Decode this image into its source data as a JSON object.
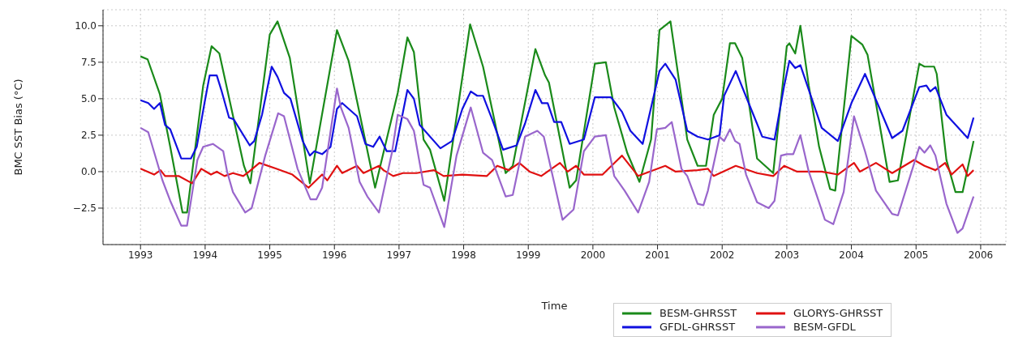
{
  "chart_data": {
    "type": "line",
    "xlabel": "Time",
    "ylabel": "BMC SST Bias (°C)",
    "xlim": [
      1992.42,
      2006.39
    ],
    "xticks": [
      1993,
      1994,
      1995,
      1996,
      1997,
      1998,
      1999,
      2000,
      2001,
      2002,
      2003,
      2004,
      2005,
      2006
    ],
    "ylim": [
      -5.0,
      11.1
    ],
    "yticks": [
      {
        "value": -2.5,
        "label": "−2.5"
      },
      {
        "value": 0,
        "label": "0.0"
      },
      {
        "value": 2.5,
        "label": "2.5"
      },
      {
        "value": 5,
        "label": "5.0"
      },
      {
        "value": 7.5,
        "label": "7.5"
      },
      {
        "value": 10,
        "label": "10.0"
      }
    ],
    "grid": true,
    "legend": "bottom right",
    "marker": "none",
    "line_style": "solid",
    "series": [
      {
        "name": "BESM-GHRSST",
        "color": "#1a8a1a",
        "x": [
          1993.0,
          1993.11,
          1993.3,
          1993.46,
          1993.65,
          1993.72,
          1993.97,
          1994.1,
          1994.22,
          1994.6,
          1994.7,
          1995.0,
          1995.12,
          1995.31,
          1995.62,
          1996.04,
          1996.22,
          1996.63,
          1996.98,
          1997.13,
          1997.23,
          1997.38,
          1997.48,
          1997.7,
          1998.1,
          1998.3,
          1998.65,
          1998.76,
          1999.11,
          1999.26,
          1999.32,
          1999.64,
          1999.74,
          2000.03,
          2000.2,
          2000.33,
          2000.53,
          2000.72,
          2000.9,
          2001.03,
          2001.2,
          2001.33,
          2001.46,
          2001.62,
          2001.75,
          2001.87,
          2002.0,
          2002.12,
          2002.2,
          2002.31,
          2002.54,
          2002.79,
          2003.0,
          2003.04,
          2003.13,
          2003.21,
          2003.34,
          2003.5,
          2003.67,
          2003.75,
          2004.0,
          2004.17,
          2004.25,
          2004.59,
          2004.72,
          2005.05,
          2005.13,
          2005.28,
          2005.32,
          2005.47,
          2005.61,
          2005.72,
          2005.89
        ],
        "values": [
          7.9,
          7.7,
          5.3,
          1.7,
          -2.8,
          -2.8,
          5.9,
          8.6,
          8.1,
          0.4,
          -0.8,
          9.4,
          10.3,
          7.8,
          -0.8,
          9.7,
          7.6,
          -1.1,
          5.4,
          9.2,
          8.2,
          2.2,
          1.5,
          -2.0,
          10.1,
          7.2,
          -0.1,
          0.4,
          8.4,
          6.6,
          6.1,
          -1.1,
          -0.6,
          7.4,
          7.5,
          4.4,
          1.3,
          -0.7,
          2.2,
          9.7,
          10.3,
          6.3,
          2.2,
          0.4,
          0.4,
          3.9,
          5.0,
          8.8,
          8.8,
          7.8,
          0.9,
          -0.1,
          8.6,
          8.8,
          8.1,
          10.0,
          5.9,
          1.7,
          -1.2,
          -1.3,
          9.3,
          8.7,
          8.0,
          -0.7,
          -0.6,
          7.4,
          7.2,
          7.2,
          6.7,
          0.8,
          -1.4,
          -1.4,
          2.1
        ]
      },
      {
        "name": "GFDL-GHRSST",
        "color": "#1010e0",
        "x": [
          1993.0,
          1993.12,
          1993.21,
          1993.3,
          1993.38,
          1993.46,
          1993.63,
          1993.78,
          1993.87,
          1993.99,
          1994.07,
          1994.18,
          1994.25,
          1994.37,
          1994.44,
          1994.69,
          1994.76,
          1994.88,
          1995.03,
          1995.12,
          1995.22,
          1995.32,
          1995.51,
          1995.62,
          1995.69,
          1995.81,
          1995.94,
          1996.04,
          1996.12,
          1996.35,
          1996.48,
          1996.6,
          1996.7,
          1996.81,
          1996.94,
          1997.13,
          1997.23,
          1997.32,
          1997.64,
          1997.82,
          1997.98,
          1998.11,
          1998.21,
          1998.3,
          1998.44,
          1998.61,
          1998.82,
          1998.95,
          1999.11,
          1999.21,
          1999.3,
          1999.4,
          1999.51,
          1999.64,
          1999.86,
          2000.03,
          2000.28,
          2000.45,
          2000.58,
          2000.77,
          2001.03,
          2001.12,
          2001.28,
          2001.46,
          2001.62,
          2001.78,
          2001.96,
          2002.03,
          2002.21,
          2002.41,
          2002.62,
          2002.81,
          2002.96,
          2003.04,
          2003.13,
          2003.21,
          2003.54,
          2003.79,
          2004.0,
          2004.21,
          2004.63,
          2004.79,
          2005.05,
          2005.16,
          2005.22,
          2005.3,
          2005.47,
          2005.8,
          2005.89
        ],
        "values": [
          4.9,
          4.7,
          4.3,
          4.7,
          3.2,
          2.9,
          0.9,
          0.9,
          1.7,
          4.7,
          6.6,
          6.6,
          5.6,
          3.7,
          3.6,
          1.8,
          2.1,
          3.9,
          7.2,
          6.5,
          5.4,
          5.0,
          2.1,
          1.1,
          1.4,
          1.2,
          1.7,
          4.3,
          4.7,
          3.8,
          1.9,
          1.7,
          2.4,
          1.4,
          1.4,
          5.6,
          5.0,
          3.2,
          1.6,
          2.1,
          4.3,
          5.5,
          5.2,
          5.2,
          3.6,
          1.5,
          1.8,
          3.3,
          5.6,
          4.7,
          4.7,
          3.4,
          3.4,
          1.9,
          2.2,
          5.1,
          5.1,
          4.1,
          2.8,
          1.9,
          6.9,
          7.4,
          6.3,
          2.8,
          2.4,
          2.2,
          2.5,
          5.2,
          6.9,
          4.7,
          2.4,
          2.2,
          5.9,
          7.6,
          7.1,
          7.3,
          3.0,
          2.1,
          4.7,
          6.7,
          2.3,
          2.8,
          5.8,
          5.9,
          5.5,
          5.8,
          3.9,
          2.3,
          3.7
        ]
      },
      {
        "name": "GLORYS-GHRSST",
        "color": "#e01010",
        "x": [
          1993.0,
          1993.21,
          1993.31,
          1993.38,
          1993.59,
          1993.8,
          1993.94,
          1994.09,
          1994.18,
          1994.3,
          1994.43,
          1994.59,
          1994.68,
          1994.84,
          1995.1,
          1995.35,
          1995.6,
          1995.81,
          1995.89,
          1996.04,
          1996.12,
          1996.35,
          1996.45,
          1996.69,
          1996.76,
          1996.91,
          1997.06,
          1997.27,
          1997.54,
          1997.69,
          1997.98,
          1998.36,
          1998.52,
          1998.7,
          1998.86,
          1999.02,
          1999.2,
          1999.49,
          1999.61,
          1999.74,
          1999.86,
          2000.15,
          2000.45,
          2000.7,
          2001.12,
          2001.28,
          2001.62,
          2001.78,
          2001.87,
          2002.21,
          2002.54,
          2002.79,
          2002.96,
          2003.16,
          2003.54,
          2003.79,
          2004.04,
          2004.13,
          2004.38,
          2004.63,
          2004.97,
          2005.13,
          2005.3,
          2005.45,
          2005.55,
          2005.72,
          2005.8,
          2005.89
        ],
        "values": [
          0.2,
          -0.2,
          0.1,
          -0.3,
          -0.3,
          -0.8,
          0.2,
          -0.2,
          0.0,
          -0.3,
          -0.1,
          -0.3,
          0.0,
          0.6,
          0.2,
          -0.2,
          -1.1,
          -0.2,
          -0.6,
          0.4,
          -0.1,
          0.4,
          -0.1,
          0.4,
          0.1,
          -0.3,
          -0.1,
          -0.1,
          0.1,
          -0.3,
          -0.2,
          -0.3,
          0.4,
          0.1,
          0.6,
          0.0,
          -0.3,
          0.6,
          0.0,
          0.4,
          -0.2,
          -0.2,
          1.1,
          -0.3,
          0.4,
          0.0,
          0.1,
          0.2,
          -0.3,
          0.4,
          -0.1,
          -0.3,
          0.4,
          0.0,
          0.0,
          -0.2,
          0.6,
          0.0,
          0.6,
          -0.1,
          0.8,
          0.4,
          0.1,
          0.6,
          -0.2,
          0.5,
          -0.3,
          0.1
        ]
      },
      {
        "name": "BESM-GFDL",
        "color": "#9966cc",
        "x": [
          1993.0,
          1993.12,
          1993.34,
          1993.46,
          1993.63,
          1993.72,
          1993.88,
          1993.97,
          1994.12,
          1994.28,
          1994.34,
          1994.43,
          1994.62,
          1994.72,
          1994.93,
          1995.13,
          1995.22,
          1995.43,
          1995.63,
          1995.72,
          1995.81,
          1996.04,
          1996.1,
          1996.22,
          1996.39,
          1996.51,
          1996.69,
          1996.89,
          1996.98,
          1997.13,
          1997.23,
          1997.38,
          1997.48,
          1997.7,
          1997.89,
          1998.11,
          1998.3,
          1998.44,
          1998.65,
          1998.76,
          1998.95,
          1999.14,
          1999.24,
          1999.53,
          1999.7,
          1999.86,
          2000.03,
          2000.2,
          2000.33,
          2000.49,
          2000.7,
          2000.87,
          2000.99,
          2001.12,
          2001.22,
          2001.37,
          2001.46,
          2001.62,
          2001.71,
          2001.78,
          2001.96,
          2002.03,
          2002.12,
          2002.2,
          2002.27,
          2002.37,
          2002.54,
          2002.72,
          2002.81,
          2002.91,
          2003.0,
          2003.1,
          2003.21,
          2003.34,
          2003.59,
          2003.72,
          2003.88,
          2004.04,
          2004.21,
          2004.38,
          2004.63,
          2004.72,
          2005.05,
          2005.13,
          2005.22,
          2005.3,
          2005.47,
          2005.64,
          2005.72,
          2005.89
        ],
        "values": [
          3.0,
          2.7,
          -0.6,
          -2.0,
          -3.7,
          -3.7,
          0.8,
          1.7,
          1.9,
          1.4,
          0.0,
          -1.4,
          -2.8,
          -2.5,
          1.1,
          4.0,
          3.8,
          0.2,
          -1.9,
          -1.9,
          -1.1,
          5.7,
          4.4,
          3.0,
          -0.7,
          -1.7,
          -2.8,
          1.3,
          3.9,
          3.6,
          2.8,
          -0.9,
          -1.1,
          -3.8,
          1.1,
          4.4,
          1.3,
          0.8,
          -1.7,
          -1.6,
          2.4,
          2.8,
          2.4,
          -3.3,
          -2.6,
          1.4,
          2.4,
          2.5,
          -0.3,
          -1.3,
          -2.8,
          -0.7,
          2.9,
          3.0,
          3.4,
          0.2,
          -0.3,
          -2.2,
          -2.3,
          -1.3,
          2.4,
          2.1,
          2.9,
          2.1,
          1.9,
          -0.2,
          -2.1,
          -2.5,
          -2.0,
          1.1,
          1.2,
          1.2,
          2.5,
          0.0,
          -3.3,
          -3.6,
          -1.4,
          3.8,
          1.4,
          -1.3,
          -2.9,
          -3.0,
          1.7,
          1.3,
          1.8,
          1.1,
          -2.2,
          -4.2,
          -3.9,
          -1.7
        ]
      }
    ]
  }
}
